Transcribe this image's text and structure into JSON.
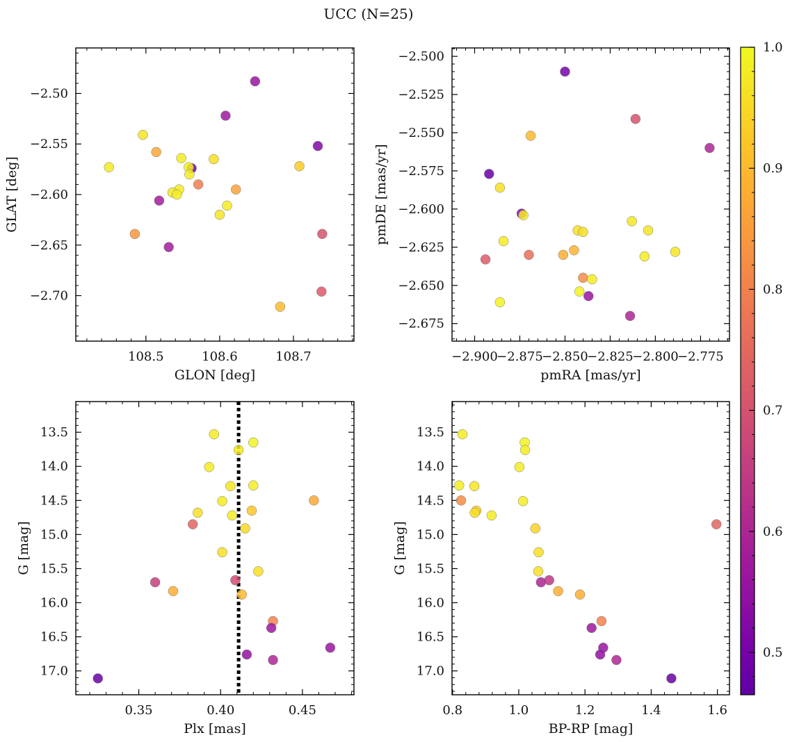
{
  "figure": {
    "title": "UCC (N=25)",
    "colorbar": {
      "ticks": [
        {
          "value": 0.5,
          "label": "0.5"
        },
        {
          "value": 0.6,
          "label": "0.6"
        },
        {
          "value": 0.7,
          "label": "0.7"
        },
        {
          "value": 0.8,
          "label": "0.8"
        },
        {
          "value": 0.9,
          "label": "0.9"
        },
        {
          "value": 1.0,
          "label": "1.0"
        }
      ],
      "range": [
        0.465,
        1.0
      ],
      "colormap": "plasma",
      "colormap_stops": [
        "#0d0887",
        "#46039f",
        "#7201a8",
        "#9c179e",
        "#bd3786",
        "#d8576b",
        "#ed7953",
        "#fb9f3a",
        "#fdca26",
        "#f0f921"
      ],
      "colormap_range": [
        0.35,
        1.0
      ]
    }
  },
  "chart_data": [
    {
      "type": "scatter",
      "xlabel": "GLON [deg]",
      "ylabel": "GLAT [deg]",
      "xlim": [
        108.405,
        108.782
      ],
      "ylim": [
        -2.745,
        -2.455
      ],
      "y_inverted": false,
      "xticks": [
        {
          "v": 108.5,
          "label": "108.5"
        },
        {
          "v": 108.6,
          "label": "108.6"
        },
        {
          "v": 108.7,
          "label": "108.7"
        }
      ],
      "yticks": [
        {
          "v": -2.5,
          "label": "−2.50"
        },
        {
          "v": -2.55,
          "label": "−2.55"
        },
        {
          "v": -2.6,
          "label": "−2.60"
        },
        {
          "v": -2.65,
          "label": "−2.65"
        },
        {
          "v": -2.7,
          "label": "−2.70"
        }
      ],
      "points": [
        {
          "x": 108.648,
          "y": -2.488,
          "c": 0.56
        },
        {
          "x": 108.608,
          "y": -2.522,
          "c": 0.57
        },
        {
          "x": 108.496,
          "y": -2.541,
          "c": 0.97
        },
        {
          "x": 108.733,
          "y": -2.552,
          "c": 0.52
        },
        {
          "x": 108.514,
          "y": -2.558,
          "c": 0.87
        },
        {
          "x": 108.548,
          "y": -2.564,
          "c": 0.98
        },
        {
          "x": 108.592,
          "y": -2.565,
          "c": 0.96
        },
        {
          "x": 108.708,
          "y": -2.572,
          "c": 0.93
        },
        {
          "x": 108.45,
          "y": -2.573,
          "c": 0.98
        },
        {
          "x": 108.562,
          "y": -2.574,
          "c": 0.5
        },
        {
          "x": 108.558,
          "y": -2.573,
          "c": 0.99
        },
        {
          "x": 108.559,
          "y": -2.58,
          "c": 0.98
        },
        {
          "x": 108.571,
          "y": -2.59,
          "c": 0.79
        },
        {
          "x": 108.622,
          "y": -2.595,
          "c": 0.86
        },
        {
          "x": 108.545,
          "y": -2.595,
          "c": 0.98
        },
        {
          "x": 108.536,
          "y": -2.598,
          "c": 0.97
        },
        {
          "x": 108.542,
          "y": -2.6,
          "c": 0.98
        },
        {
          "x": 108.518,
          "y": -2.606,
          "c": 0.58
        },
        {
          "x": 108.61,
          "y": -2.611,
          "c": 0.98
        },
        {
          "x": 108.6,
          "y": -2.62,
          "c": 0.97
        },
        {
          "x": 108.485,
          "y": -2.639,
          "c": 0.84
        },
        {
          "x": 108.739,
          "y": -2.639,
          "c": 0.7
        },
        {
          "x": 108.531,
          "y": -2.652,
          "c": 0.58
        },
        {
          "x": 108.738,
          "y": -2.696,
          "c": 0.72
        },
        {
          "x": 108.682,
          "y": -2.711,
          "c": 0.9
        }
      ]
    },
    {
      "type": "scatter",
      "xlabel": "pmRA [mas/yr]",
      "ylabel": "pmDE [mas/yr]",
      "xlim": [
        -2.9125,
        -2.759
      ],
      "ylim": [
        -2.6865,
        -2.4945
      ],
      "y_inverted": false,
      "xticks": [
        {
          "v": -2.9,
          "label": "−2.900"
        },
        {
          "v": -2.875,
          "label": "−2.875"
        },
        {
          "v": -2.85,
          "label": "−2.850"
        },
        {
          "v": -2.825,
          "label": "−2.825"
        },
        {
          "v": -2.8,
          "label": "−2.800"
        },
        {
          "v": -2.775,
          "label": "−2.775"
        }
      ],
      "yticks": [
        {
          "v": -2.5,
          "label": "−2.500"
        },
        {
          "v": -2.525,
          "label": "−2.525"
        },
        {
          "v": -2.55,
          "label": "−2.550"
        },
        {
          "v": -2.575,
          "label": "−2.575"
        },
        {
          "v": -2.6,
          "label": "−2.600"
        },
        {
          "v": -2.625,
          "label": "−2.625"
        },
        {
          "v": -2.65,
          "label": "−2.650"
        },
        {
          "v": -2.675,
          "label": "−2.675"
        }
      ],
      "points": [
        {
          "x": -2.85,
          "y": -2.51,
          "c": 0.5
        },
        {
          "x": -2.811,
          "y": -2.541,
          "c": 0.7
        },
        {
          "x": -2.869,
          "y": -2.552,
          "c": 0.9
        },
        {
          "x": -2.77,
          "y": -2.56,
          "c": 0.6
        },
        {
          "x": -2.892,
          "y": -2.577,
          "c": 0.48
        },
        {
          "x": -2.886,
          "y": -2.586,
          "c": 0.96
        },
        {
          "x": -2.874,
          "y": -2.603,
          "c": 0.52
        },
        {
          "x": -2.873,
          "y": -2.604,
          "c": 0.98
        },
        {
          "x": -2.813,
          "y": -2.608,
          "c": 0.97
        },
        {
          "x": -2.804,
          "y": -2.614,
          "c": 0.97
        },
        {
          "x": -2.843,
          "y": -2.614,
          "c": 0.96
        },
        {
          "x": -2.84,
          "y": -2.615,
          "c": 0.96
        },
        {
          "x": -2.884,
          "y": -2.621,
          "c": 0.98
        },
        {
          "x": -2.845,
          "y": -2.627,
          "c": 0.89
        },
        {
          "x": -2.789,
          "y": -2.628,
          "c": 0.97
        },
        {
          "x": -2.851,
          "y": -2.63,
          "c": 0.88
        },
        {
          "x": -2.87,
          "y": -2.63,
          "c": 0.76
        },
        {
          "x": -2.806,
          "y": -2.631,
          "c": 0.98
        },
        {
          "x": -2.894,
          "y": -2.633,
          "c": 0.72
        },
        {
          "x": -2.84,
          "y": -2.645,
          "c": 0.82
        },
        {
          "x": -2.835,
          "y": -2.646,
          "c": 0.98
        },
        {
          "x": -2.842,
          "y": -2.654,
          "c": 0.99
        },
        {
          "x": -2.837,
          "y": -2.657,
          "c": 0.56
        },
        {
          "x": -2.886,
          "y": -2.661,
          "c": 0.99
        },
        {
          "x": -2.814,
          "y": -2.67,
          "c": 0.6
        }
      ]
    },
    {
      "type": "scatter",
      "xlabel": "Plx [mas]",
      "ylabel": "G [mag]",
      "xlim": [
        0.3115,
        0.4815
      ],
      "ylim": [
        17.35,
        13.05
      ],
      "y_inverted": true,
      "xticks": [
        {
          "v": 0.35,
          "label": "0.35"
        },
        {
          "v": 0.4,
          "label": "0.40"
        },
        {
          "v": 0.45,
          "label": "0.45"
        }
      ],
      "yticks": [
        {
          "v": 13.5,
          "label": "13.5"
        },
        {
          "v": 14.0,
          "label": "14.0"
        },
        {
          "v": 14.5,
          "label": "14.5"
        },
        {
          "v": 15.0,
          "label": "15.0"
        },
        {
          "v": 15.5,
          "label": "15.5"
        },
        {
          "v": 16.0,
          "label": "16.0"
        },
        {
          "v": 16.5,
          "label": "16.5"
        },
        {
          "v": 17.0,
          "label": "17.0"
        }
      ],
      "reference_line": {
        "x": 0.411,
        "style": "dotted"
      },
      "points": [
        {
          "x": 0.396,
          "y": 13.53,
          "c": 0.98
        },
        {
          "x": 0.42,
          "y": 13.65,
          "c": 0.99
        },
        {
          "x": 0.411,
          "y": 13.76,
          "c": 0.98
        },
        {
          "x": 0.393,
          "y": 14.01,
          "c": 0.98
        },
        {
          "x": 0.406,
          "y": 14.29,
          "c": 0.97
        },
        {
          "x": 0.42,
          "y": 14.28,
          "c": 0.98
        },
        {
          "x": 0.401,
          "y": 14.51,
          "c": 0.98
        },
        {
          "x": 0.457,
          "y": 14.5,
          "c": 0.87
        },
        {
          "x": 0.419,
          "y": 14.65,
          "c": 0.92
        },
        {
          "x": 0.386,
          "y": 14.68,
          "c": 0.96
        },
        {
          "x": 0.407,
          "y": 14.72,
          "c": 0.98
        },
        {
          "x": 0.383,
          "y": 14.85,
          "c": 0.74
        },
        {
          "x": 0.415,
          "y": 14.91,
          "c": 0.95
        },
        {
          "x": 0.401,
          "y": 15.26,
          "c": 0.96
        },
        {
          "x": 0.423,
          "y": 15.54,
          "c": 0.96
        },
        {
          "x": 0.36,
          "y": 15.7,
          "c": 0.66
        },
        {
          "x": 0.409,
          "y": 15.67,
          "c": 0.69
        },
        {
          "x": 0.371,
          "y": 15.83,
          "c": 0.88
        },
        {
          "x": 0.413,
          "y": 15.88,
          "c": 0.9
        },
        {
          "x": 0.432,
          "y": 16.27,
          "c": 0.8
        },
        {
          "x": 0.431,
          "y": 16.37,
          "c": 0.57
        },
        {
          "x": 0.467,
          "y": 16.66,
          "c": 0.56
        },
        {
          "x": 0.416,
          "y": 16.76,
          "c": 0.55
        },
        {
          "x": 0.432,
          "y": 16.84,
          "c": 0.6
        },
        {
          "x": 0.325,
          "y": 17.11,
          "c": 0.48
        }
      ]
    },
    {
      "type": "scatter",
      "xlabel": "BP-RP [mag]",
      "ylabel": "G [mag]",
      "xlim": [
        0.7985,
        1.6365
      ],
      "ylim": [
        17.35,
        13.05
      ],
      "y_inverted": true,
      "xticks": [
        {
          "v": 0.8,
          "label": "0.8"
        },
        {
          "v": 1.0,
          "label": "1.0"
        },
        {
          "v": 1.2,
          "label": "1.2"
        },
        {
          "v": 1.4,
          "label": "1.4"
        },
        {
          "v": 1.6,
          "label": "1.6"
        }
      ],
      "yticks": [
        {
          "v": 13.5,
          "label": "13.5"
        },
        {
          "v": 14.0,
          "label": "14.0"
        },
        {
          "v": 14.5,
          "label": "14.5"
        },
        {
          "v": 15.0,
          "label": "15.0"
        },
        {
          "v": 15.5,
          "label": "15.5"
        },
        {
          "v": 16.0,
          "label": "16.0"
        },
        {
          "v": 16.5,
          "label": "16.5"
        },
        {
          "v": 17.0,
          "label": "17.0"
        }
      ],
      "points": [
        {
          "x": 0.83,
          "y": 13.53,
          "c": 0.98
        },
        {
          "x": 1.018,
          "y": 13.65,
          "c": 0.99
        },
        {
          "x": 1.019,
          "y": 13.76,
          "c": 0.98
        },
        {
          "x": 1.002,
          "y": 14.01,
          "c": 0.98
        },
        {
          "x": 0.82,
          "y": 14.28,
          "c": 0.98
        },
        {
          "x": 0.866,
          "y": 14.29,
          "c": 0.97
        },
        {
          "x": 0.826,
          "y": 14.5,
          "c": 0.82
        },
        {
          "x": 1.013,
          "y": 14.51,
          "c": 0.98
        },
        {
          "x": 0.872,
          "y": 14.65,
          "c": 0.93
        },
        {
          "x": 0.867,
          "y": 14.68,
          "c": 0.96
        },
        {
          "x": 0.918,
          "y": 14.72,
          "c": 0.98
        },
        {
          "x": 1.597,
          "y": 14.85,
          "c": 0.74
        },
        {
          "x": 1.05,
          "y": 14.91,
          "c": 0.94
        },
        {
          "x": 1.06,
          "y": 15.26,
          "c": 0.96
        },
        {
          "x": 1.059,
          "y": 15.54,
          "c": 0.96
        },
        {
          "x": 1.092,
          "y": 15.67,
          "c": 0.64
        },
        {
          "x": 1.067,
          "y": 15.7,
          "c": 0.6
        },
        {
          "x": 1.119,
          "y": 15.83,
          "c": 0.88
        },
        {
          "x": 1.185,
          "y": 15.88,
          "c": 0.88
        },
        {
          "x": 1.25,
          "y": 16.27,
          "c": 0.8
        },
        {
          "x": 1.22,
          "y": 16.37,
          "c": 0.57
        },
        {
          "x": 1.255,
          "y": 16.66,
          "c": 0.56
        },
        {
          "x": 1.246,
          "y": 16.76,
          "c": 0.55
        },
        {
          "x": 1.295,
          "y": 16.84,
          "c": 0.6
        },
        {
          "x": 1.461,
          "y": 17.11,
          "c": 0.48
        }
      ]
    }
  ]
}
